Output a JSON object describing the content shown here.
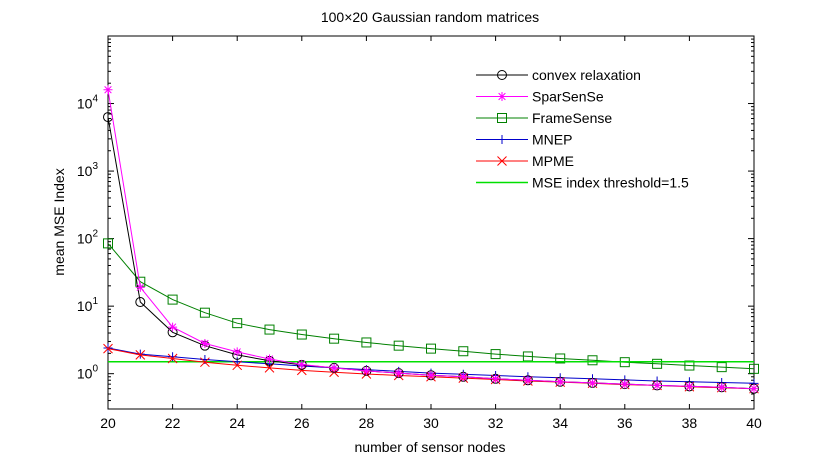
{
  "chart_data": {
    "type": "line",
    "title": "100×20 Gaussian random matrices",
    "xlabel": "number of sensor nodes",
    "ylabel": "mean MSE Index",
    "xlim": [
      20,
      40
    ],
    "ylim": [
      0.3,
      100000
    ],
    "yscale": "log",
    "xticks": [
      20,
      22,
      24,
      26,
      28,
      30,
      32,
      34,
      36,
      38,
      40
    ],
    "yticks": [
      {
        "value": 1,
        "base": "10",
        "exp": "0"
      },
      {
        "value": 10,
        "base": "10",
        "exp": "1"
      },
      {
        "value": 100,
        "base": "10",
        "exp": "2"
      },
      {
        "value": 1000,
        "base": "10",
        "exp": "3"
      },
      {
        "value": 10000,
        "base": "10",
        "exp": "4"
      }
    ],
    "legend_position": "top-right",
    "x": [
      20,
      21,
      22,
      23,
      24,
      25,
      26,
      27,
      28,
      29,
      30,
      31,
      32,
      33,
      34,
      35,
      36,
      37,
      38,
      39,
      40
    ],
    "series": [
      {
        "name": "convex relaxation",
        "color": "#000000",
        "marker": "circle",
        "values": [
          6300,
          11.5,
          4.1,
          2.6,
          1.9,
          1.55,
          1.35,
          1.22,
          1.1,
          1.02,
          0.95,
          0.9,
          0.84,
          0.8,
          0.76,
          0.73,
          0.7,
          0.67,
          0.65,
          0.63,
          0.6
        ]
      },
      {
        "name": "SparSenSe",
        "color": "#ff00ff",
        "marker": "asterisk",
        "values": [
          16000,
          19,
          4.9,
          2.8,
          2.1,
          1.65,
          1.37,
          1.22,
          1.1,
          1.02,
          0.95,
          0.9,
          0.84,
          0.8,
          0.76,
          0.73,
          0.7,
          0.67,
          0.65,
          0.63,
          0.6
        ]
      },
      {
        "name": "FrameSense",
        "color": "#008000",
        "marker": "square",
        "values": [
          85,
          23,
          12.5,
          8,
          5.6,
          4.5,
          3.8,
          3.3,
          2.9,
          2.6,
          2.35,
          2.15,
          1.95,
          1.8,
          1.68,
          1.58,
          1.48,
          1.4,
          1.32,
          1.25,
          1.18
        ]
      },
      {
        "name": "MNEP",
        "color": "#0000cc",
        "marker": "plus",
        "values": [
          2.4,
          1.95,
          1.78,
          1.62,
          1.5,
          1.4,
          1.3,
          1.22,
          1.15,
          1.08,
          1.02,
          0.98,
          0.94,
          0.9,
          0.87,
          0.84,
          0.81,
          0.78,
          0.76,
          0.74,
          0.72
        ]
      },
      {
        "name": "MPME",
        "color": "#ff0000",
        "marker": "x",
        "values": [
          2.35,
          1.9,
          1.68,
          1.48,
          1.33,
          1.22,
          1.12,
          1.05,
          0.99,
          0.94,
          0.9,
          0.86,
          0.82,
          0.78,
          0.75,
          0.72,
          0.69,
          0.67,
          0.64,
          0.62,
          0.6
        ]
      },
      {
        "name": "MSE index threshold=1.5",
        "color": "#00e000",
        "marker": "none",
        "values": [
          1.5,
          1.5,
          1.5,
          1.5,
          1.5,
          1.5,
          1.5,
          1.5,
          1.5,
          1.5,
          1.5,
          1.5,
          1.5,
          1.5,
          1.5,
          1.5,
          1.5,
          1.5,
          1.5,
          1.5,
          1.5
        ]
      }
    ]
  }
}
